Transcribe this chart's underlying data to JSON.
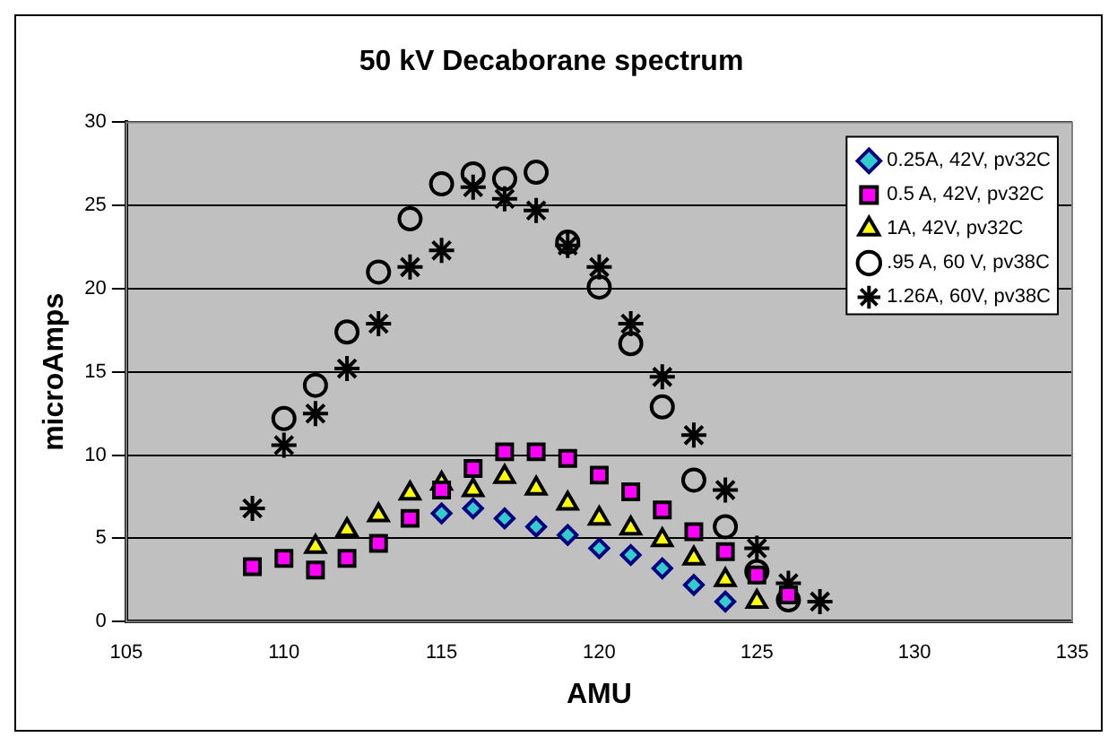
{
  "chart_data": {
    "type": "scatter",
    "title": "50 kV Decaborane spectrum",
    "xlabel": "AMU",
    "ylabel": "microAmps",
    "xlim": [
      105,
      135
    ],
    "xticks": [
      105,
      110,
      115,
      120,
      125,
      130,
      135
    ],
    "ylim": [
      0,
      30
    ],
    "yticks": [
      0,
      5,
      10,
      15,
      20,
      25,
      30
    ],
    "grid": "y",
    "legend": "top right",
    "series": [
      {
        "name": "0.25A, 42V, pv32C",
        "color": "#33cccc",
        "marker": "diamond",
        "x": [
          115,
          116,
          117,
          118,
          119,
          120,
          121,
          122,
          123,
          124
        ],
        "values": [
          6.5,
          6.8,
          6.2,
          5.7,
          5.2,
          4.4,
          4.0,
          3.2,
          2.2,
          1.2
        ]
      },
      {
        "name": "0.5 A, 42V, pv32C",
        "color": "#ff00ff",
        "marker": "square",
        "x": [
          109,
          110,
          111,
          112,
          113,
          114,
          115,
          116,
          117,
          118,
          119,
          120,
          121,
          122,
          123,
          124,
          125,
          126
        ],
        "values": [
          3.3,
          3.8,
          3.1,
          3.8,
          4.7,
          6.2,
          7.9,
          9.2,
          10.2,
          10.2,
          9.8,
          8.8,
          7.8,
          6.7,
          5.4,
          4.2,
          2.8,
          1.6
        ]
      },
      {
        "name": "1A, 42V, pv32C",
        "color": "#ffff00",
        "marker": "triangle",
        "x": [
          111,
          112,
          113,
          114,
          115,
          116,
          117,
          118,
          119,
          120,
          121,
          122,
          123,
          124,
          125
        ],
        "values": [
          4.5,
          5.5,
          6.4,
          7.7,
          8.3,
          7.9,
          8.7,
          8.0,
          7.1,
          6.2,
          5.6,
          4.9,
          3.8,
          2.5,
          1.2
        ]
      },
      {
        "name": ".95 A, 60 V, pv38C",
        "color": "#000000",
        "marker": "circle",
        "x": [
          110,
          111,
          112,
          113,
          114,
          115,
          116,
          117,
          118,
          119,
          120,
          121,
          122,
          123,
          124,
          125,
          126
        ],
        "values": [
          12.2,
          14.2,
          17.4,
          21.0,
          24.2,
          26.3,
          26.9,
          26.6,
          27.0,
          22.8,
          20.1,
          16.7,
          12.9,
          8.5,
          5.7,
          3.0,
          1.3
        ]
      },
      {
        "name": "1.26A, 60V, pv38C",
        "color": "#000000",
        "marker": "cross",
        "x": [
          109,
          110,
          111,
          112,
          113,
          114,
          115,
          116,
          117,
          118,
          119,
          120,
          121,
          122,
          123,
          124,
          125,
          126,
          127
        ],
        "values": [
          6.8,
          10.6,
          12.5,
          15.2,
          17.9,
          21.3,
          22.3,
          26.1,
          25.4,
          24.7,
          22.6,
          21.3,
          17.9,
          14.7,
          11.2,
          7.9,
          4.4,
          2.3,
          1.2
        ]
      }
    ]
  }
}
